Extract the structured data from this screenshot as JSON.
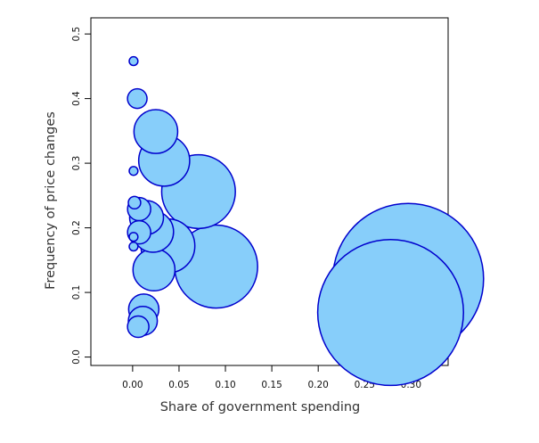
{
  "chart_data": {
    "type": "scatter",
    "title": "",
    "xlabel": "Share of government spending",
    "ylabel": "Frequency of price changes",
    "xlim": [
      -0.045,
      0.34
    ],
    "ylim": [
      -0.013,
      0.525
    ],
    "xticks": [
      0.0,
      0.05,
      0.1,
      0.15,
      0.2,
      0.25,
      0.3
    ],
    "xtick_labels": [
      "0.00",
      "0.05",
      "0.10",
      "0.15",
      "0.20",
      "0.25",
      "0.30"
    ],
    "yticks": [
      0.0,
      0.1,
      0.2,
      0.3,
      0.4,
      0.5
    ],
    "ytick_labels": [
      "0.0",
      "0.1",
      "0.2",
      "0.3",
      "0.4",
      "0.5"
    ],
    "grid": false,
    "legend": "none",
    "marker_fill": "#87cefa",
    "marker_edge": "#0000cd",
    "points": [
      {
        "x": 0.001,
        "y": 0.458
      },
      {
        "x": 0.005,
        "y": 0.4
      },
      {
        "x": 0.025,
        "y": 0.349
      },
      {
        "x": 0.034,
        "y": 0.304
      },
      {
        "x": 0.001,
        "y": 0.288
      },
      {
        "x": 0.071,
        "y": 0.256
      },
      {
        "x": 0.002,
        "y": 0.239
      },
      {
        "x": 0.007,
        "y": 0.229
      },
      {
        "x": 0.015,
        "y": 0.216
      },
      {
        "x": 0.022,
        "y": 0.194
      },
      {
        "x": 0.007,
        "y": 0.193
      },
      {
        "x": 0.001,
        "y": 0.186
      },
      {
        "x": 0.038,
        "y": 0.172
      },
      {
        "x": 0.001,
        "y": 0.171
      },
      {
        "x": 0.09,
        "y": 0.14
      },
      {
        "x": 0.023,
        "y": 0.135
      },
      {
        "x": 0.297,
        "y": 0.121
      },
      {
        "x": 0.278,
        "y": 0.069
      },
      {
        "x": 0.012,
        "y": 0.074
      },
      {
        "x": 0.011,
        "y": 0.056
      },
      {
        "x": 0.006,
        "y": 0.047
      }
    ]
  }
}
